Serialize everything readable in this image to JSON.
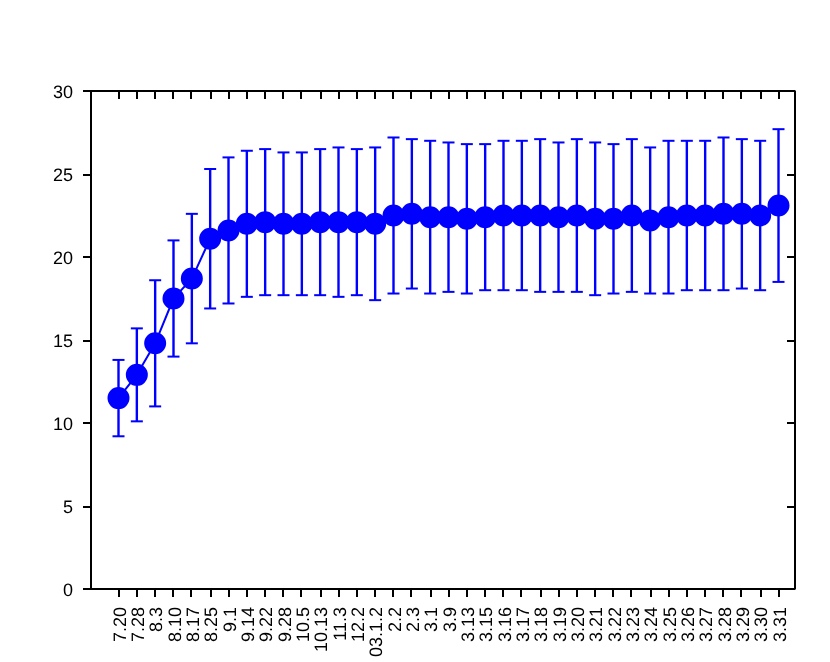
{
  "chart_data": {
    "type": "line",
    "marker": "circle",
    "line_style": "solid",
    "grid": false,
    "categories": [
      "7.20",
      "7.28",
      "8.3",
      "8.10",
      "8.17",
      "8.25",
      "9.1",
      "9.14",
      "9.22",
      "9.28",
      "10.5",
      "10.13",
      "11.3",
      "12.2",
      "03.1.2",
      "2.2",
      "2.3",
      "3.1",
      "3.9",
      "3.13",
      "3.15",
      "3.16",
      "3.17",
      "3.18",
      "3.19",
      "3.20",
      "3.21",
      "3.22",
      "3.23",
      "3.24",
      "3.25",
      "3.26",
      "3.27",
      "3.28",
      "3.29",
      "3.30",
      "3.31"
    ],
    "series": [
      {
        "color": "#0000ff",
        "values": [
          11.5,
          12.9,
          14.8,
          17.5,
          18.7,
          21.1,
          21.6,
          22.0,
          22.1,
          22.0,
          22.0,
          22.1,
          22.1,
          22.1,
          22.0,
          22.5,
          22.6,
          22.4,
          22.4,
          22.3,
          22.4,
          22.5,
          22.5,
          22.5,
          22.4,
          22.5,
          22.3,
          22.3,
          22.5,
          22.2,
          22.4,
          22.5,
          22.5,
          22.6,
          22.6,
          22.5,
          23.1
        ],
        "errors": [
          2.3,
          2.8,
          3.8,
          3.5,
          3.9,
          4.2,
          4.4,
          4.4,
          4.4,
          4.3,
          4.3,
          4.4,
          4.5,
          4.4,
          4.6,
          4.7,
          4.5,
          4.6,
          4.5,
          4.5,
          4.4,
          4.5,
          4.5,
          4.6,
          4.5,
          4.6,
          4.6,
          4.5,
          4.6,
          4.4,
          4.6,
          4.5,
          4.5,
          4.6,
          4.5,
          4.5,
          4.6
        ]
      }
    ],
    "ylim": [
      0,
      30
    ],
    "yticks": [
      0,
      5,
      10,
      15,
      20,
      25,
      30
    ]
  }
}
